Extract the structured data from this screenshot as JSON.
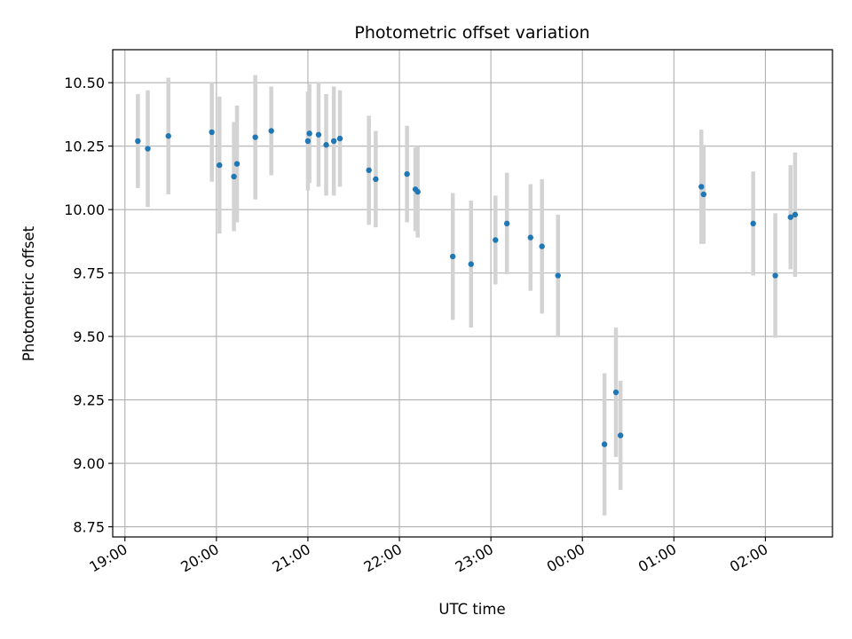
{
  "chart_data": {
    "type": "scatter",
    "title": "Photometric offset variation",
    "xlabel": "UTC time",
    "ylabel": "Photometric offset",
    "x_axis_kind": "time",
    "xlim": [
      "2000-01-01T18:52:00",
      "2000-01-02T02:44:00"
    ],
    "ylim": [
      8.71,
      10.63
    ],
    "grid": true,
    "x_tick_labels": [
      "19:00",
      "20:00",
      "21:00",
      "22:00",
      "23:00",
      "00:00",
      "01:00",
      "02:00"
    ],
    "y_tick_labels": [
      "8.75",
      "9.00",
      "9.25",
      "9.50",
      "9.75",
      "10.00",
      "10.25",
      "10.50"
    ],
    "marker_color": "#1f77b4",
    "errorbar_color": "#d3d3d3",
    "series": [
      {
        "points": [
          {
            "x": "2000-01-01T19:08:30",
            "y": 10.27,
            "err": 0.185
          },
          {
            "x": "2000-01-01T19:15:00",
            "y": 10.24,
            "err": 0.23
          },
          {
            "x": "2000-01-01T19:28:30",
            "y": 10.29,
            "err": 0.23
          },
          {
            "x": "2000-01-01T19:57:00",
            "y": 10.305,
            "err": 0.195
          },
          {
            "x": "2000-01-01T20:02:00",
            "y": 10.175,
            "err": 0.27
          },
          {
            "x": "2000-01-01T20:11:30",
            "y": 10.13,
            "err": 0.215
          },
          {
            "x": "2000-01-01T20:13:30",
            "y": 10.18,
            "err": 0.23
          },
          {
            "x": "2000-01-01T20:25:30",
            "y": 10.285,
            "err": 0.245
          },
          {
            "x": "2000-01-01T20:36:00",
            "y": 10.31,
            "err": 0.175
          },
          {
            "x": "2000-01-01T21:00:00",
            "y": 10.27,
            "err": 0.195
          },
          {
            "x": "2000-01-01T21:01:00",
            "y": 10.3,
            "err": 0.195
          },
          {
            "x": "2000-01-01T21:07:00",
            "y": 10.295,
            "err": 0.205
          },
          {
            "x": "2000-01-01T21:12:00",
            "y": 10.255,
            "err": 0.2
          },
          {
            "x": "2000-01-01T21:17:00",
            "y": 10.27,
            "err": 0.215
          },
          {
            "x": "2000-01-01T21:21:00",
            "y": 10.28,
            "err": 0.19
          },
          {
            "x": "2000-01-01T21:40:00",
            "y": 10.155,
            "err": 0.215
          },
          {
            "x": "2000-01-01T21:44:30",
            "y": 10.12,
            "err": 0.19
          },
          {
            "x": "2000-01-01T22:05:00",
            "y": 10.14,
            "err": 0.19
          },
          {
            "x": "2000-01-01T22:10:30",
            "y": 10.08,
            "err": 0.165
          },
          {
            "x": "2000-01-01T22:12:00",
            "y": 10.07,
            "err": 0.18
          },
          {
            "x": "2000-01-01T22:35:00",
            "y": 9.815,
            "err": 0.25
          },
          {
            "x": "2000-01-01T22:47:00",
            "y": 9.785,
            "err": 0.25
          },
          {
            "x": "2000-01-01T23:03:00",
            "y": 9.88,
            "err": 0.175
          },
          {
            "x": "2000-01-01T23:10:30",
            "y": 9.945,
            "err": 0.2
          },
          {
            "x": "2000-01-01T23:26:00",
            "y": 9.89,
            "err": 0.21
          },
          {
            "x": "2000-01-01T23:33:30",
            "y": 9.855,
            "err": 0.265
          },
          {
            "x": "2000-01-01T23:44:00",
            "y": 9.74,
            "err": 0.24
          },
          {
            "x": "2000-01-02T00:14:30",
            "y": 9.075,
            "err": 0.28
          },
          {
            "x": "2000-01-02T00:22:00",
            "y": 9.28,
            "err": 0.255
          },
          {
            "x": "2000-01-02T00:25:00",
            "y": 9.11,
            "err": 0.215
          },
          {
            "x": "2000-01-02T01:18:00",
            "y": 10.09,
            "err": 0.225
          },
          {
            "x": "2000-01-02T01:19:30",
            "y": 10.06,
            "err": 0.195
          },
          {
            "x": "2000-01-02T01:52:00",
            "y": 9.945,
            "err": 0.205
          },
          {
            "x": "2000-01-02T02:06:30",
            "y": 9.74,
            "err": 0.245
          },
          {
            "x": "2000-01-02T02:16:30",
            "y": 9.97,
            "err": 0.205
          },
          {
            "x": "2000-01-02T02:19:30",
            "y": 9.98,
            "err": 0.245
          }
        ]
      }
    ]
  }
}
